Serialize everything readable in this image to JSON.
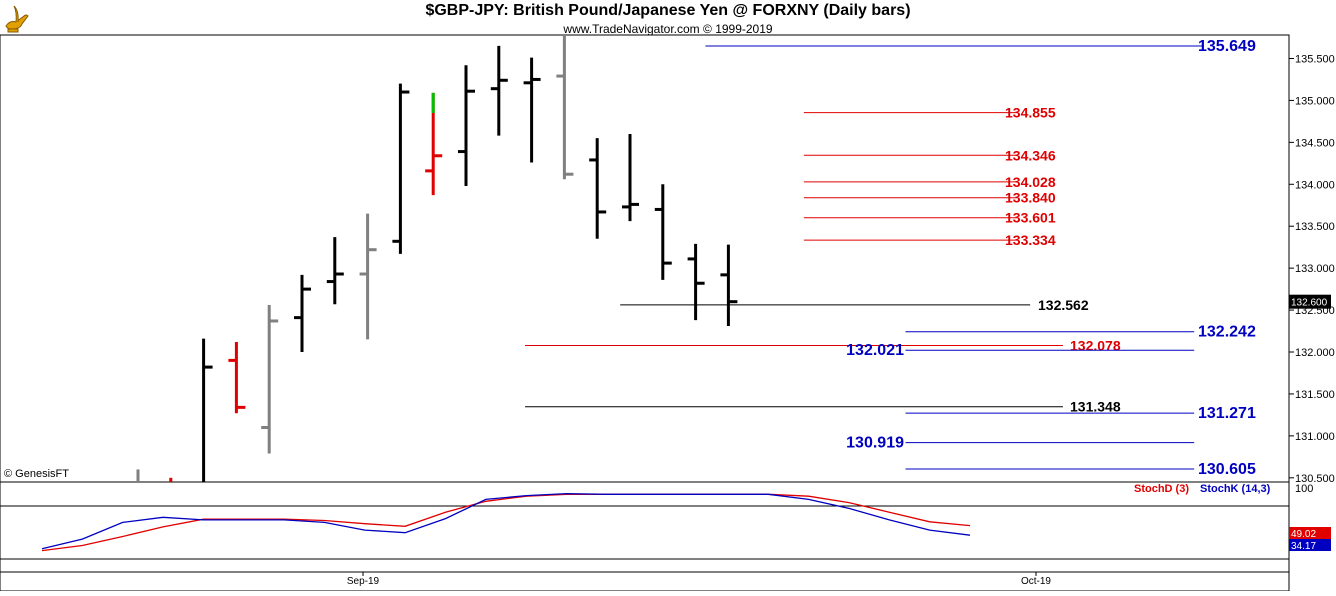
{
  "header": {
    "title": "$GBP-JPY:  British Pound/Japanese Yen @ FORXNY  (Daily bars)",
    "subtitle": "www.TradeNavigator.com © 1999-2019",
    "copyright": "© GenesisFT",
    "logo_icon": "genie-lamp-icon"
  },
  "colors": {
    "up_bar": "#000000",
    "down_bar": "#e00000",
    "neutral_bar": "#808080",
    "green_tick": "#00c000",
    "fib_blue": "#0000c0",
    "fib_red": "#e00000",
    "stoch_d": "#e00000",
    "stoch_k": "#0000c0"
  },
  "chart_data": [
    {
      "type": "ohlc",
      "ylim": [
        130.45,
        135.78
      ],
      "y_ticks": [
        "135.500",
        "135.000",
        "134.500",
        "134.000",
        "133.500",
        "133.000",
        "132.500",
        "132.000",
        "131.500",
        "131.000",
        "130.500"
      ],
      "x_labels": [
        "Sep-19",
        "Oct-19"
      ],
      "last_price": "132.600",
      "bars": [
        {
          "h": 130.6,
          "l": 130.45,
          "o": null,
          "c": null,
          "color": "neutral"
        },
        {
          "h": 130.5,
          "l": 130.45,
          "o": null,
          "c": null,
          "color": "down"
        },
        {
          "h": 132.16,
          "l": 130.45,
          "o": null,
          "c": 131.82,
          "color": "up"
        },
        {
          "h": 132.12,
          "l": 131.27,
          "o": 131.9,
          "c": 131.34,
          "color": "down"
        },
        {
          "h": 132.56,
          "l": 130.79,
          "o": 131.1,
          "c": 132.37,
          "color": "neutral"
        },
        {
          "h": 132.92,
          "l": 132.0,
          "o": 132.41,
          "c": 132.75,
          "color": "up"
        },
        {
          "h": 133.37,
          "l": 132.57,
          "o": 132.84,
          "c": 132.93,
          "color": "up"
        },
        {
          "h": 133.65,
          "l": 132.15,
          "o": 132.93,
          "c": 133.22,
          "color": "neutral"
        },
        {
          "h": 135.2,
          "l": 133.17,
          "o": 133.32,
          "c": 135.1,
          "color": "up"
        },
        {
          "h": 135.09,
          "l": 133.87,
          "o": 134.16,
          "c": 134.34,
          "color": "down",
          "top_color": "green",
          "green_to": 134.85
        },
        {
          "h": 135.42,
          "l": 133.98,
          "o": 134.39,
          "c": 135.11,
          "color": "up"
        },
        {
          "h": 135.65,
          "l": 134.58,
          "o": 135.14,
          "c": 135.24,
          "color": "up"
        },
        {
          "h": 135.51,
          "l": 134.26,
          "o": 135.21,
          "c": 135.25,
          "color": "up"
        },
        {
          "h": 135.78,
          "l": 134.06,
          "o": 135.29,
          "c": 134.12,
          "color": "neutral"
        },
        {
          "h": 134.55,
          "l": 133.35,
          "o": 134.29,
          "c": 133.67,
          "color": "up"
        },
        {
          "h": 134.6,
          "l": 133.56,
          "o": 133.73,
          "c": 133.76,
          "color": "up"
        },
        {
          "h": 134.0,
          "l": 132.86,
          "o": 133.7,
          "c": 133.06,
          "color": "up"
        },
        {
          "h": 133.29,
          "l": 132.38,
          "o": 133.11,
          "c": 132.82,
          "color": "up"
        },
        {
          "h": 133.28,
          "l": 132.31,
          "o": 132.92,
          "c": 132.6,
          "color": "up"
        }
      ],
      "levels": [
        {
          "value": 135.649,
          "label": "135.649",
          "color": "blue"
        },
        {
          "value": 134.855,
          "label": "134.855",
          "color": "red"
        },
        {
          "value": 134.346,
          "label": "134.346",
          "color": "red"
        },
        {
          "value": 134.028,
          "label": "134.028",
          "color": "red"
        },
        {
          "value": 133.84,
          "label": "133.840",
          "color": "red"
        },
        {
          "value": 133.601,
          "label": "133.601",
          "color": "red"
        },
        {
          "value": 133.334,
          "label": "133.334",
          "color": "red"
        },
        {
          "value": 132.562,
          "label": "132.562",
          "color": "black"
        },
        {
          "value": 132.242,
          "label": "132.242",
          "color": "blue"
        },
        {
          "value": 132.078,
          "label": "132.078",
          "color": "red"
        },
        {
          "value": 132.021,
          "label": "132.021",
          "color": "blue"
        },
        {
          "value": 131.348,
          "label": "131.348",
          "color": "black"
        },
        {
          "value": 131.271,
          "label": "131.271",
          "color": "blue"
        },
        {
          "value": 130.919,
          "label": "130.919",
          "color": "blue"
        },
        {
          "value": 130.605,
          "label": "130.605",
          "color": "blue"
        }
      ]
    },
    {
      "type": "line",
      "ylim": [
        0,
        100
      ],
      "y_tick": "100",
      "series": [
        {
          "name": "StochD (3)",
          "color": "red",
          "last": "49.02",
          "values": [
            10,
            18,
            32,
            47,
            59,
            59,
            59,
            57,
            52,
            48,
            70,
            87,
            95,
            98,
            98,
            98,
            98,
            98,
            98,
            95,
            85,
            70,
            55,
            49
          ]
        },
        {
          "name": "StochK (14,3)",
          "color": "blue",
          "last": "34.17",
          "values": [
            13,
            28,
            54,
            62,
            58,
            58,
            58,
            54,
            42,
            38,
            60,
            90,
            96,
            99,
            98,
            98,
            98,
            98,
            98,
            90,
            76,
            58,
            42,
            34
          ]
        }
      ]
    }
  ]
}
